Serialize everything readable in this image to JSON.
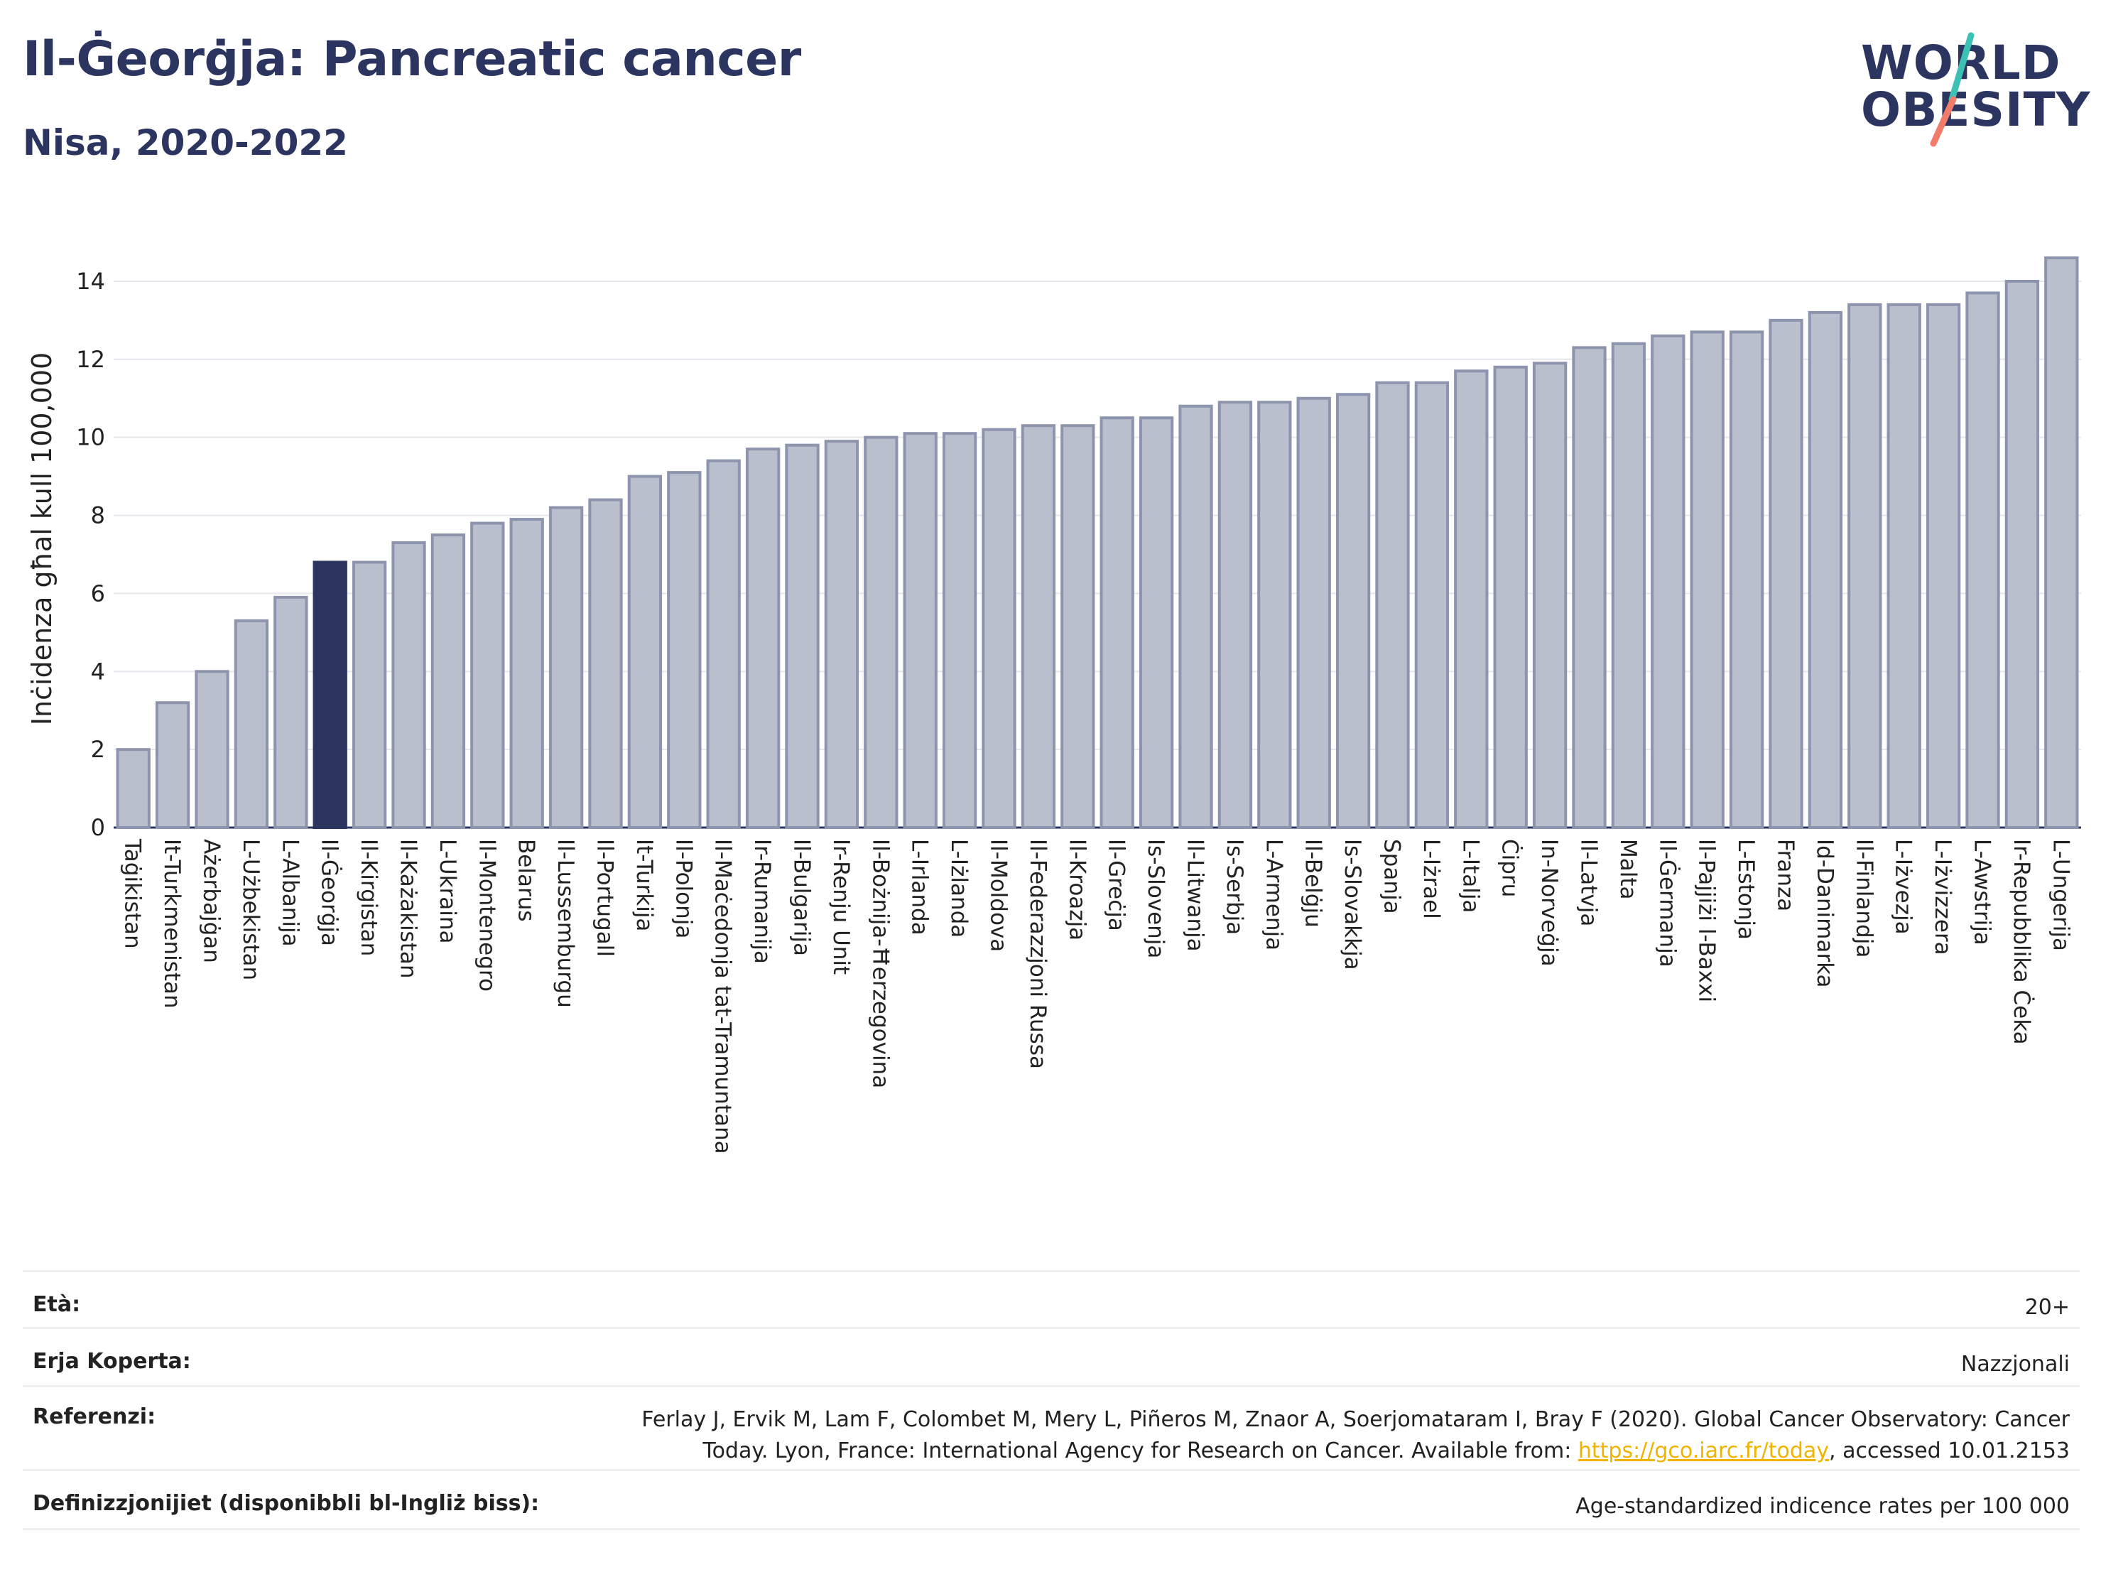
{
  "header": {
    "title": "Il-Ġeorġja: Pancreatic cancer",
    "subtitle": "Nisa, 2020-2022"
  },
  "logo": {
    "line1": "WORLD",
    "line2": "OBESITY",
    "accent1": "#3cc1b4",
    "accent2": "#f27b6b"
  },
  "colors": {
    "bar": "#babfcd",
    "bar_border": "#8d94ad",
    "highlight": "#2b3560"
  },
  "chart_data": {
    "type": "bar",
    "ylabel": "Inċidenza għal kull 100,000",
    "ylim": [
      0,
      14.8
    ],
    "yticks": [
      0,
      2,
      4,
      6,
      8,
      10,
      12,
      14
    ],
    "grid": true,
    "highlight": "Il-Ġeorġja",
    "categories": [
      "Taġikistan",
      "It-Turkmenistan",
      "Ażerbajġan",
      "L-Użbekistan",
      "L-Albanija",
      "Il-Ġeorġja",
      "Il-Kirgistan",
      "Il-Każakistan",
      "L-Ukraina",
      "Il-Montenegro",
      "Belarus",
      "Il-Lussemburgu",
      "Il-Portugall",
      "It-Turkija",
      "Il-Polonja",
      "Il-Maċedonja tat-Tramuntana",
      "Ir-Rumanija",
      "Il-Bulgarija",
      "Ir-Renju Unit",
      "Il-Bożnija-Ħerzegovina",
      "L-Irlanda",
      "L-Iżlanda",
      "Il-Moldova",
      "Il-Federazzjoni Russa",
      "Il-Kroazja",
      "Il-Greċja",
      "Is-Slovenja",
      "Il-Litwanja",
      "Is-Serbja",
      "L-Armenja",
      "Il-Belġju",
      "Is-Slovakkja",
      "Spanja",
      "L-Iżrael",
      "L-Italja",
      "Ċipru",
      "In-Norveġja",
      "Il-Latvja",
      "Malta",
      "Il-Ġermanja",
      "Il-Pajjiżi l-Baxxi",
      "L-Estonja",
      "Franza",
      "Id-Danimarka",
      "Il-Finlandja",
      "L-Iżvezja",
      "L-Iżvizzera",
      "L-Awstrija",
      "Ir-Repubblika Ċeka",
      "L-Ungerija"
    ],
    "values": [
      2.0,
      3.2,
      4.0,
      5.3,
      5.9,
      6.8,
      6.8,
      7.3,
      7.5,
      7.8,
      7.9,
      8.2,
      8.4,
      9.0,
      9.1,
      9.4,
      9.7,
      9.8,
      9.9,
      10.0,
      10.1,
      10.1,
      10.2,
      10.3,
      10.3,
      10.5,
      10.5,
      10.8,
      10.9,
      10.9,
      11.0,
      11.1,
      11.4,
      11.4,
      11.7,
      11.8,
      11.9,
      12.3,
      12.4,
      12.6,
      12.7,
      12.7,
      13.0,
      13.2,
      13.4,
      13.4,
      13.4,
      13.7,
      14.0,
      14.6
    ]
  },
  "meta": {
    "age_label": "Età:",
    "age_value": "20+",
    "area_label": "Erja Koperta:",
    "area_value": "Nazzjonali",
    "ref_label": "Referenzi:",
    "ref_text": "Ferlay J, Ervik M, Lam F, Colombet M, Mery L, Piñeros M, Znaor A, Soerjomataram I, Bray F (2020). Global Cancer Observatory: Cancer Today. Lyon, France: International Agency for Research on Cancer. Available from: ",
    "ref_link": "https://gco.iarc.fr/today",
    "ref_tail": ", accessed 10.01.2153",
    "def_label": "Definizzjonijiet (disponibbli bl-Ingliż biss):",
    "def_value": "Age-standardized indicence rates per 100 000"
  }
}
